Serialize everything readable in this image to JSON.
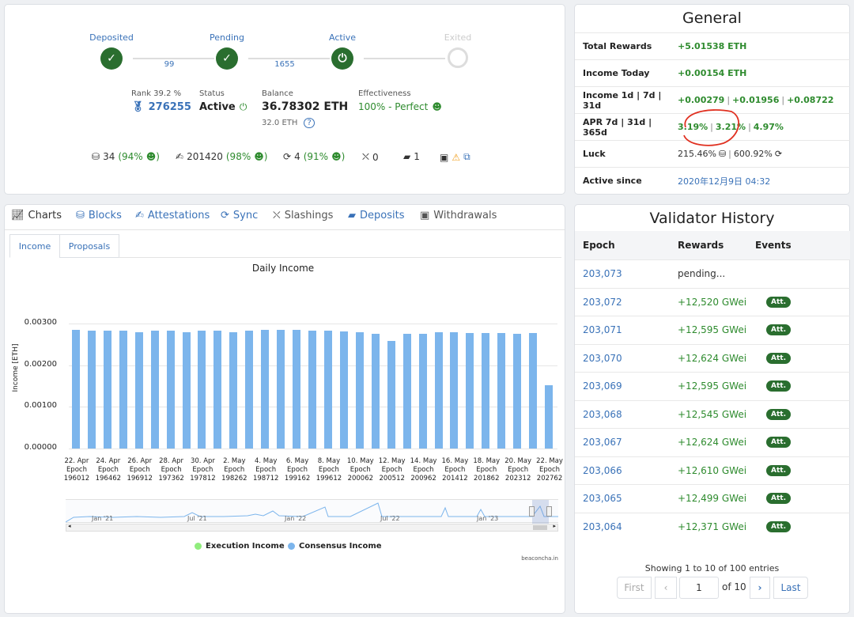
{
  "progress": {
    "steps": [
      {
        "label": "Deposited"
      },
      {
        "label": "Pending"
      },
      {
        "label": "Active"
      },
      {
        "label": "Exited"
      }
    ],
    "connectors": [
      "99",
      "1655",
      ""
    ]
  },
  "summary": {
    "rank_label": "Rank 39.2 %",
    "rank_value": "276255",
    "status_label": "Status",
    "status_value": "Active",
    "balance_label": "Balance",
    "balance_value": "36.78302 ETH",
    "balance_sub": "32.0 ETH",
    "effectiveness_label": "Effectiveness",
    "effectiveness_value": "100% - Perfect"
  },
  "mini_stats": {
    "proposals": "34",
    "proposals_pct": "(94%",
    "attestations": "201420",
    "attestations_pct": "(98%",
    "sync": "4",
    "sync_pct": "(91%",
    "slashings": "0",
    "deposits": "1"
  },
  "general": {
    "title": "General",
    "rows": [
      {
        "key": "Total Rewards",
        "value": "+5.01538 ETH"
      },
      {
        "key": "Income Today",
        "value": "+0.00154 ETH"
      }
    ],
    "income_key": "Income 1d | 7d | 31d",
    "income_1d": "+0.00279",
    "income_7d": "+0.01956",
    "income_31d": "+0.08722",
    "apr_key": "APR 7d | 31d | 365d",
    "apr_7d": "3.19%",
    "apr_31d": "3.21%",
    "apr_365d": "4.97%",
    "luck_key": "Luck",
    "luck_1": "215.46%",
    "luck_2": "600.92%",
    "active_key": "Active since",
    "active_value": "2020年12月9日 04:32"
  },
  "tabs": [
    "Charts",
    "Blocks",
    "Attestations",
    "Sync",
    "Slashings",
    "Deposits",
    "Withdrawals"
  ],
  "subtabs": [
    "Income",
    "Proposals"
  ],
  "chart_data": {
    "type": "bar",
    "title": "Daily Income",
    "ylabel": "Income [ETH]",
    "ylim": [
      0,
      0.003
    ],
    "yticks": [
      "0.00000",
      "0.00100",
      "0.00200",
      "0.00300"
    ],
    "categories": [
      "22. Apr",
      "23. Apr",
      "24. Apr",
      "25. Apr",
      "26. Apr",
      "27. Apr",
      "28. Apr",
      "29. Apr",
      "30. Apr",
      "1. May",
      "2. May",
      "3. May",
      "4. May",
      "5. May",
      "6. May",
      "7. May",
      "8. May",
      "9. May",
      "10. May",
      "11. May",
      "12. May",
      "13. May",
      "14. May",
      "15. May",
      "16. May",
      "17. May",
      "18. May",
      "19. May",
      "20. May",
      "21. May",
      "22. May"
    ],
    "x_labels": [
      [
        "22. Apr",
        "Epoch",
        "196012"
      ],
      [
        "24. Apr",
        "Epoch",
        "196462"
      ],
      [
        "26. Apr",
        "Epoch",
        "196912"
      ],
      [
        "28. Apr",
        "Epoch",
        "197362"
      ],
      [
        "30. Apr",
        "Epoch",
        "197812"
      ],
      [
        "2. May",
        "Epoch",
        "198262"
      ],
      [
        "4. May",
        "Epoch",
        "198712"
      ],
      [
        "6. May",
        "Epoch",
        "199162"
      ],
      [
        "8. May",
        "Epoch",
        "199612"
      ],
      [
        "10. May",
        "Epoch",
        "200062"
      ],
      [
        "12. May",
        "Epoch",
        "200512"
      ],
      [
        "14. May",
        "Epoch",
        "200962"
      ],
      [
        "16. May",
        "Epoch",
        "201412"
      ],
      [
        "18. May",
        "Epoch",
        "201862"
      ],
      [
        "20. May",
        "Epoch",
        "202312"
      ],
      [
        "22. May",
        "Epoch",
        "202762"
      ]
    ],
    "series": [
      {
        "name": "Execution Income",
        "color": "#90ed7d",
        "values": [
          0,
          0,
          0,
          0,
          0,
          0,
          0,
          0,
          0,
          0,
          0,
          0,
          0,
          0,
          0,
          0,
          0,
          0,
          0,
          0,
          0,
          0,
          0,
          0,
          0,
          0,
          0,
          0,
          0,
          0,
          0
        ]
      },
      {
        "name": "Consensus Income",
        "color": "#7cb5ec",
        "values": [
          0.00284,
          0.00283,
          0.00283,
          0.00283,
          0.0028,
          0.00283,
          0.00282,
          0.00279,
          0.00283,
          0.00283,
          0.0028,
          0.00282,
          0.00284,
          0.00285,
          0.00284,
          0.00283,
          0.00282,
          0.00281,
          0.0028,
          0.00276,
          0.00258,
          0.00276,
          0.00275,
          0.00279,
          0.0028,
          0.00278,
          0.00277,
          0.00278,
          0.00276,
          0.00277,
          0.00152
        ]
      }
    ],
    "navigator_labels": [
      "Jan '21",
      "Jul '21",
      "Jan '22",
      "Jul '22",
      "Jan '23"
    ],
    "credit": "beaconcha.in"
  },
  "history": {
    "title": "Validator History",
    "headers": [
      "Epoch",
      "Rewards",
      "Events"
    ],
    "rows": [
      {
        "epoch": "203,073",
        "reward": "pending...",
        "event": ""
      },
      {
        "epoch": "203,072",
        "reward": "+12,520 GWei",
        "event": "Att."
      },
      {
        "epoch": "203,071",
        "reward": "+12,595 GWei",
        "event": "Att."
      },
      {
        "epoch": "203,070",
        "reward": "+12,624 GWei",
        "event": "Att."
      },
      {
        "epoch": "203,069",
        "reward": "+12,595 GWei",
        "event": "Att."
      },
      {
        "epoch": "203,068",
        "reward": "+12,545 GWei",
        "event": "Att."
      },
      {
        "epoch": "203,067",
        "reward": "+12,624 GWei",
        "event": "Att."
      },
      {
        "epoch": "203,066",
        "reward": "+12,610 GWei",
        "event": "Att."
      },
      {
        "epoch": "203,065",
        "reward": "+12,499 GWei",
        "event": "Att."
      },
      {
        "epoch": "203,064",
        "reward": "+12,371 GWei",
        "event": "Att."
      }
    ],
    "showing": "Showing 1 to 10 of 100 entries",
    "pagination": {
      "first": "First",
      "page": "1",
      "of": "of 10",
      "last": "Last"
    }
  }
}
